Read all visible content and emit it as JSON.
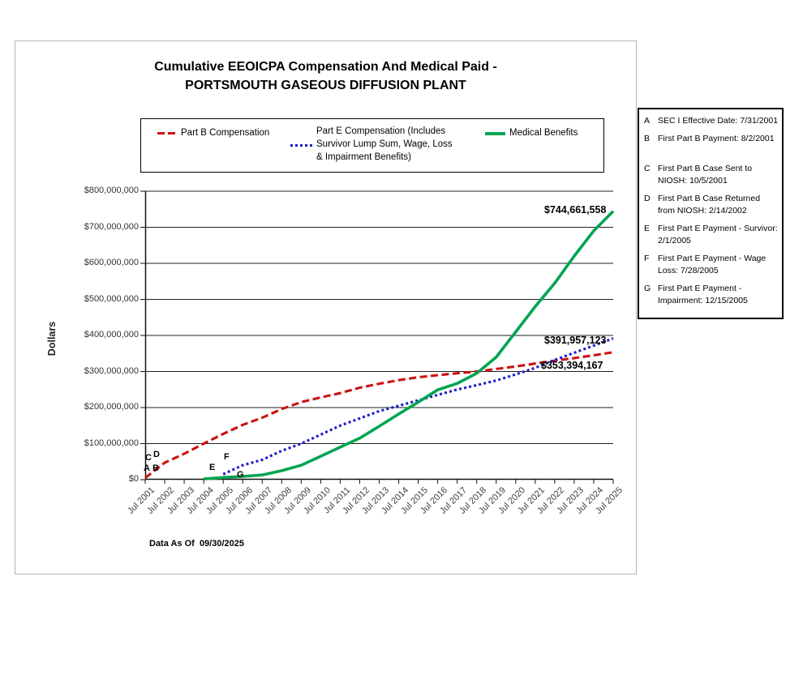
{
  "chart_data": {
    "type": "line",
    "title": "Cumulative EEOICPA Compensation And Medical Paid - PORTSMOUTH GASEOUS DIFFUSION PLANT",
    "title_lines": [
      "Cumulative EEOICPA Compensation And Medical Paid -",
      "PORTSMOUTH GASEOUS DIFFUSION PLANT"
    ],
    "ylabel": "Dollars",
    "xlabel": "",
    "ylim_millions": [
      0,
      800
    ],
    "grid": "horizontal",
    "legend_position": "top-boxed",
    "y_ticks": [
      {
        "label": "$800,000,000",
        "value": 800
      },
      {
        "label": "$700,000,000",
        "value": 700
      },
      {
        "label": "$600,000,000",
        "value": 600
      },
      {
        "label": "$500,000,000",
        "value": 500
      },
      {
        "label": "$400,000,000",
        "value": 400
      },
      {
        "label": "$300,000,000",
        "value": 300
      },
      {
        "label": "$200,000,000",
        "value": 200
      },
      {
        "label": "$100,000,000",
        "value": 100
      },
      {
        "label": "$0",
        "value": 0
      }
    ],
    "categories": [
      "Jul 2001",
      "Jul 2002",
      "Jul 2003",
      "Jul 2004",
      "Jul 2005",
      "Jul 2006",
      "Jul 2007",
      "Jul 2008",
      "Jul 2009",
      "Jul 2010",
      "Jul 2011",
      "Jul 2012",
      "Jul 2013",
      "Jul 2014",
      "Jul 2015",
      "Jul 2016",
      "Jul 2017",
      "Jul 2018",
      "Jul 2019",
      "Jul 2020",
      "Jul 2021",
      "Jul 2022",
      "Jul 2023",
      "Jul 2024",
      "Jul 2025"
    ],
    "series": [
      {
        "key": "part-b",
        "name": "Part B Compensation",
        "color": "#cc1212",
        "style": "dashed",
        "end_label": "$353,394,167",
        "values_millions": [
          5,
          47,
          72,
          100,
          127,
          152,
          172,
          196,
          215,
          228,
          240,
          255,
          266,
          276,
          284,
          290,
          295,
          300,
          307,
          314,
          322,
          330,
          337,
          345,
          353.4
        ]
      },
      {
        "key": "part-e",
        "name": "Part E Compensation (Includes Survivor Lump Sum, Wage, Loss & Impairment Benefits)",
        "color": "#1c1ccd",
        "style": "dotted",
        "end_label": "$391,957,123",
        "values_millions": [
          null,
          null,
          null,
          null,
          15,
          40,
          55,
          80,
          100,
          125,
          150,
          170,
          190,
          205,
          220,
          235,
          250,
          262,
          275,
          292,
          310,
          332,
          352,
          372,
          392
        ]
      },
      {
        "key": "medical",
        "name": "Medical Benefits",
        "color": "#00a551",
        "style": "solid",
        "end_label": "$744,661,558",
        "values_millions": [
          null,
          null,
          null,
          2,
          6,
          9,
          13,
          25,
          40,
          65,
          90,
          115,
          148,
          182,
          215,
          249,
          267,
          295,
          340,
          410,
          480,
          545,
          620,
          690,
          744.7
        ]
      }
    ],
    "events": [
      {
        "id": "A",
        "x": 158,
        "y": 521
      },
      {
        "id": "B",
        "x": 169,
        "y": 521
      },
      {
        "id": "C",
        "x": 160,
        "y": 508
      },
      {
        "id": "D",
        "x": 170,
        "y": 504
      },
      {
        "id": "E",
        "x": 239,
        "y": 520
      },
      {
        "id": "F",
        "x": 257,
        "y": 507
      },
      {
        "id": "G",
        "x": 273,
        "y": 529
      }
    ],
    "footnote": "Data As Of  09/30/2025"
  },
  "event_key": {
    "items": [
      {
        "id": "A",
        "text": "SEC I Effective Date: 7/31/2001"
      },
      {
        "id": "B",
        "text": "First Part B Payment: 8/2/2001"
      },
      {
        "id": "C",
        "text": "First Part B Case Sent to NIOSH: 10/5/2001"
      },
      {
        "id": "D",
        "text": "First Part B Case Returned from NIOSH: 2/14/2002"
      },
      {
        "id": "E",
        "text": "First Part E Payment - Survivor: 2/1/2005"
      },
      {
        "id": "F",
        "text": "First Part E Payment - Wage Loss: 7/28/2005"
      },
      {
        "id": "G",
        "text": "First Part E Payment - Impairment: 12/15/2005"
      }
    ]
  }
}
